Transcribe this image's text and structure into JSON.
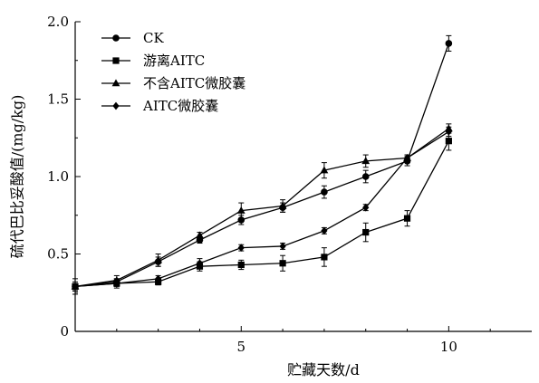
{
  "chart_data": {
    "type": "line",
    "title": "",
    "xlabel": "贮藏天数/d",
    "ylabel": "硫代巴比妥酸值/(mg/kg)",
    "xlim": [
      1,
      12
    ],
    "ylim": [
      0,
      2.0
    ],
    "xticks": [
      5,
      10
    ],
    "yticks": [
      0,
      0.5,
      1.0,
      1.5,
      2.0
    ],
    "ytick_labels": [
      "0",
      "0.5",
      "1.0",
      "1.5",
      "2.0"
    ],
    "legend_position": "top-left",
    "grid": false,
    "x": [
      1,
      2,
      3,
      4,
      5,
      6,
      7,
      8,
      9,
      10
    ],
    "series": [
      {
        "name": "CK",
        "marker": "circle",
        "values": [
          0.29,
          0.32,
          0.45,
          0.59,
          0.72,
          0.8,
          0.9,
          1.0,
          1.1,
          1.86
        ],
        "errors": [
          0.03,
          0.02,
          0.03,
          0.02,
          0.03,
          0.03,
          0.04,
          0.04,
          0.03,
          0.05
        ]
      },
      {
        "name": "游离AITC",
        "marker": "square",
        "values": [
          0.29,
          0.31,
          0.32,
          0.42,
          0.43,
          0.44,
          0.48,
          0.64,
          0.73,
          1.23
        ],
        "errors": [
          0.05,
          0.03,
          0.02,
          0.03,
          0.03,
          0.05,
          0.06,
          0.06,
          0.05,
          0.06
        ]
      },
      {
        "name": "不含AITC微胶囊",
        "marker": "triangle",
        "values": [
          0.29,
          0.33,
          0.46,
          0.62,
          0.78,
          0.81,
          1.04,
          1.1,
          1.12,
          1.31
        ],
        "errors": [
          0.02,
          0.03,
          0.04,
          0.02,
          0.05,
          0.04,
          0.05,
          0.04,
          0.02,
          0.03
        ]
      },
      {
        "name": "AITC微胶囊",
        "marker": "diamond",
        "values": [
          0.29,
          0.31,
          0.34,
          0.44,
          0.54,
          0.55,
          0.65,
          0.8,
          1.12,
          1.29
        ],
        "errors": [
          0.02,
          0.02,
          0.02,
          0.03,
          0.02,
          0.02,
          0.02,
          0.02,
          0.02,
          0.03
        ]
      }
    ]
  }
}
